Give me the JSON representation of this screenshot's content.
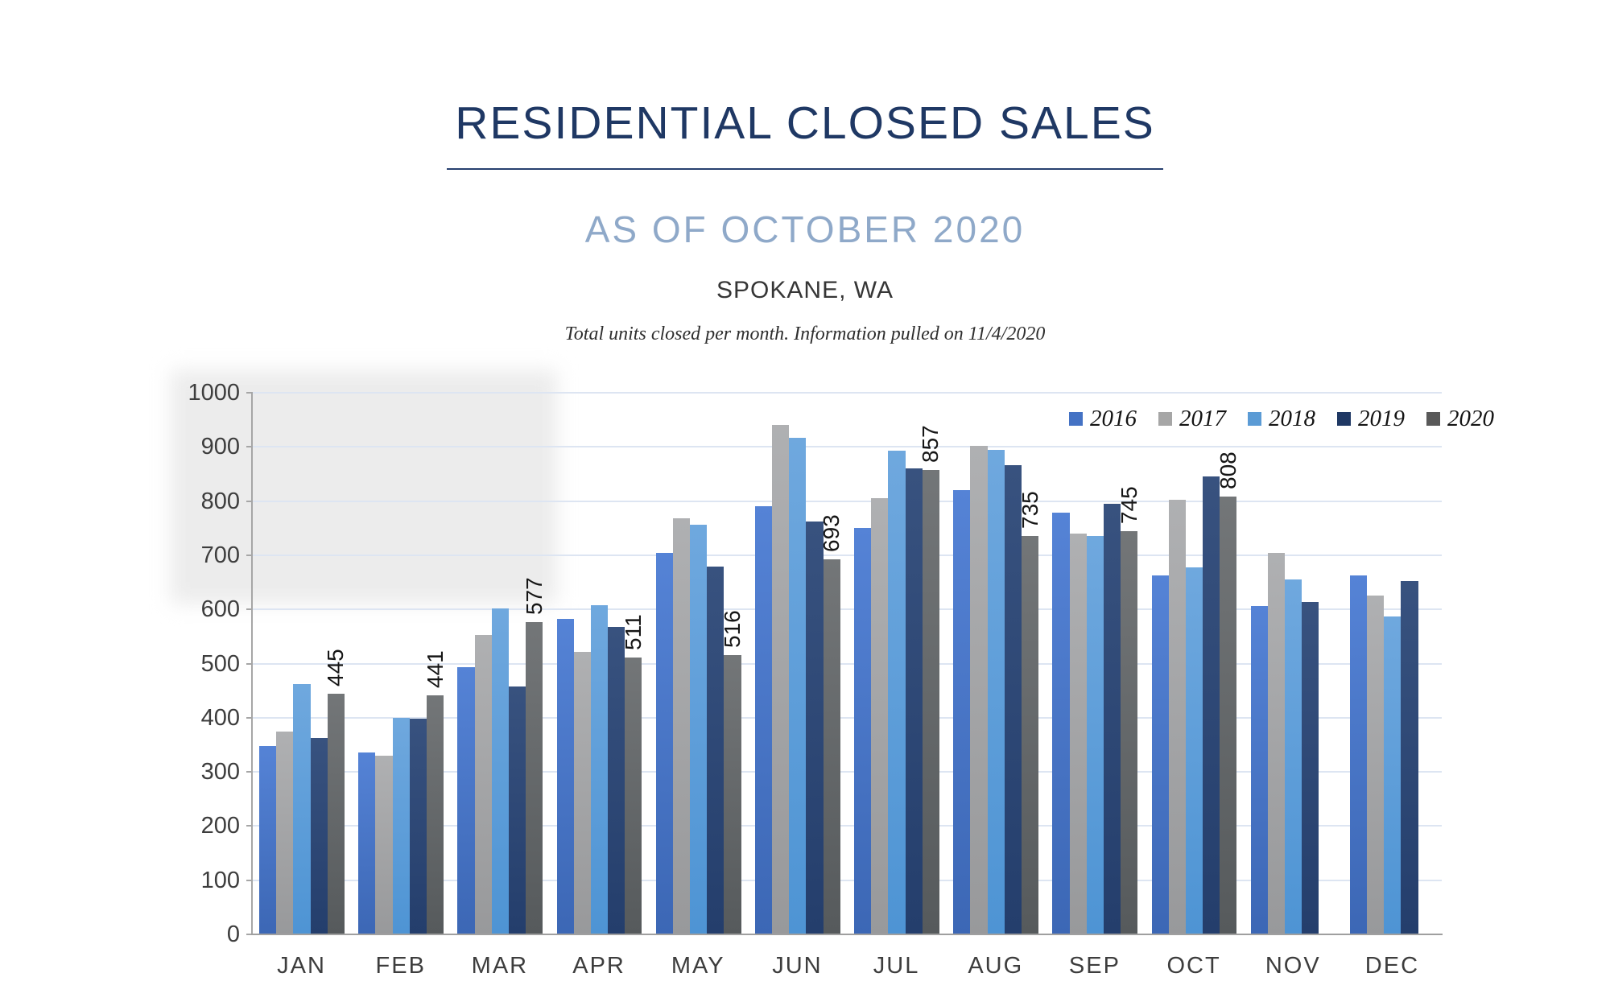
{
  "header": {
    "title": "RESIDENTIAL CLOSED SALES",
    "subtitle": "AS OF OCTOBER 2020",
    "location": "SPOKANE, WA",
    "note": "Total units closed per month.  Information pulled on 11/4/2020"
  },
  "colors": {
    "title": "#1F3864",
    "subtitle": "#8FA9C9",
    "axis": "#A6A6A6",
    "gridline": "#DDE5F2",
    "shadow_panel": "#ECECEC"
  },
  "chart_data": {
    "type": "bar",
    "title": "RESIDENTIAL CLOSED SALES",
    "subtitle": "AS OF OCTOBER 2020",
    "location": "SPOKANE, WA",
    "footnote": "Total units closed per month.  Information pulled on 11/4/2020",
    "categories": [
      "JAN",
      "FEB",
      "MAR",
      "APR",
      "MAY",
      "JUN",
      "JUL",
      "AUG",
      "SEP",
      "OCT",
      "NOV",
      "DEC"
    ],
    "series": [
      {
        "name": "2016",
        "color": "#4472C4",
        "color_top": "#5583D6",
        "color_bottom": "#3C67B5",
        "values": [
          348,
          336,
          493,
          583,
          705,
          790,
          750,
          820,
          778,
          663,
          607,
          662
        ]
      },
      {
        "name": "2017",
        "color": "#A6A6A6",
        "color_top": "#AFB0B2",
        "color_bottom": "#98999B",
        "values": [
          374,
          330,
          553,
          522,
          768,
          940,
          805,
          902,
          740,
          802,
          705,
          626
        ]
      },
      {
        "name": "2018",
        "color": "#5B9BD5",
        "color_top": "#6FA8DE",
        "color_bottom": "#4E94D4",
        "values": [
          462,
          400,
          602,
          608,
          757,
          917,
          893,
          895,
          736,
          678,
          655,
          587
        ]
      },
      {
        "name": "2019",
        "color": "#1F3864",
        "color_top": "#38527F",
        "color_bottom": "#243E6C",
        "values": [
          362,
          398,
          457,
          567,
          679,
          762,
          860,
          867,
          795,
          845,
          613,
          653
        ]
      },
      {
        "name": "2020",
        "color": "#595959",
        "color_top": "#737678",
        "color_bottom": "#565A5C",
        "values": [
          445,
          441,
          577,
          511,
          516,
          693,
          857,
          735,
          745,
          808,
          null,
          null
        ],
        "data_labels": true
      }
    ],
    "ylim": [
      0,
      1000
    ],
    "ytick_step": 100,
    "grid": true,
    "legend_position": "top-right",
    "legend_entries": [
      "2016",
      "2017",
      "2018",
      "2019",
      "2020"
    ],
    "data_label_values": [
      445,
      441,
      577,
      511,
      516,
      693,
      857,
      735,
      745,
      808
    ]
  }
}
